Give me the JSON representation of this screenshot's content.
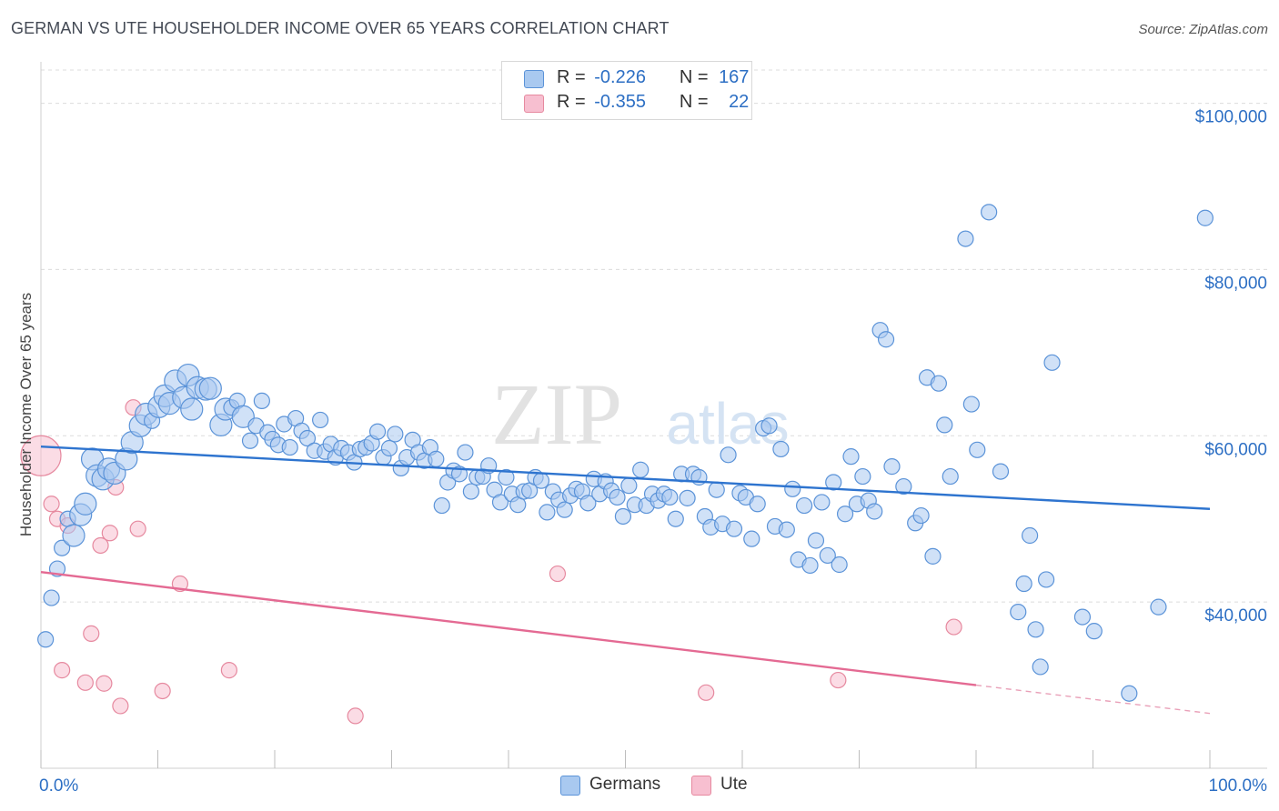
{
  "title": "GERMAN VS UTE HOUSEHOLDER INCOME OVER 65 YEARS CORRELATION CHART",
  "source": "Source: ZipAtlas.com",
  "watermark": {
    "zip": "ZIP",
    "atlas": "atlas"
  },
  "legend": {
    "r_label": "R =",
    "n_label": "N =",
    "items": [
      {
        "name": "Germans",
        "r": "-0.226",
        "n": "167",
        "color": "#a9c9f0",
        "edge": "#5b93d8"
      },
      {
        "name": "Ute",
        "r": "-0.355",
        "n": "22",
        "color": "#f7bfd0",
        "edge": "#e6899f"
      }
    ]
  },
  "chart_data": {
    "type": "scatter",
    "title": "GERMAN VS UTE HOUSEHOLDER INCOME OVER 65 YEARS CORRELATION CHART",
    "xlabel": "",
    "ylabel": "Householder Income Over 65 years",
    "xlim": [
      0,
      100
    ],
    "ylim": [
      20000,
      104000
    ],
    "x_tick_labels": [
      "0.0%",
      "100.0%"
    ],
    "y_ticks": [
      40000,
      60000,
      80000,
      100000
    ],
    "y_tick_labels": [
      "$40,000",
      "$60,000",
      "$80,000",
      "$100,000"
    ],
    "series": [
      {
        "name": "Germans",
        "color": "#5b93d8",
        "fill": "#a9c9f0",
        "trend": {
          "x": [
            0,
            100
          ],
          "y": [
            58700,
            51200
          ]
        },
        "points": [
          [
            0.4,
            35500,
            1
          ],
          [
            0.9,
            40500,
            1
          ],
          [
            1.4,
            44000,
            1
          ],
          [
            1.8,
            46500,
            1
          ],
          [
            2.3,
            50000,
            1
          ],
          [
            2.8,
            48000,
            2
          ],
          [
            3.4,
            50500,
            2
          ],
          [
            3.8,
            51800,
            2
          ],
          [
            4.4,
            57200,
            2
          ],
          [
            4.8,
            55200,
            2
          ],
          [
            5.3,
            54800,
            2
          ],
          [
            5.8,
            56000,
            2
          ],
          [
            6.3,
            55500,
            2
          ],
          [
            7.3,
            57200,
            2
          ],
          [
            7.8,
            59200,
            2
          ],
          [
            8.5,
            61200,
            2
          ],
          [
            9.0,
            62600,
            2
          ],
          [
            9.5,
            61800,
            1
          ],
          [
            10.1,
            63500,
            2
          ],
          [
            10.6,
            64800,
            2
          ],
          [
            11.0,
            63900,
            2
          ],
          [
            11.5,
            66600,
            2
          ],
          [
            12.2,
            64600,
            2
          ],
          [
            12.6,
            67300,
            2
          ],
          [
            12.9,
            63200,
            2
          ],
          [
            13.4,
            65800,
            2
          ],
          [
            14.1,
            65600,
            2
          ],
          [
            14.5,
            65700,
            2
          ],
          [
            15.4,
            61300,
            2
          ],
          [
            15.8,
            63200,
            2
          ],
          [
            16.3,
            63400,
            1
          ],
          [
            16.8,
            64200,
            1
          ],
          [
            17.3,
            62300,
            2
          ],
          [
            17.9,
            59400,
            1
          ],
          [
            18.4,
            61200,
            1
          ],
          [
            18.9,
            64200,
            1
          ],
          [
            19.4,
            60400,
            1
          ],
          [
            19.8,
            59600,
            1
          ],
          [
            20.3,
            58900,
            1
          ],
          [
            20.8,
            61400,
            1
          ],
          [
            21.3,
            58600,
            1
          ],
          [
            21.8,
            62100,
            1
          ],
          [
            22.3,
            60600,
            1
          ],
          [
            22.8,
            59700,
            1
          ],
          [
            23.4,
            58200,
            1
          ],
          [
            23.9,
            61900,
            1
          ],
          [
            24.3,
            58100,
            1
          ],
          [
            24.8,
            59000,
            1
          ],
          [
            25.2,
            57400,
            1
          ],
          [
            25.7,
            58500,
            1
          ],
          [
            26.3,
            58000,
            1
          ],
          [
            26.8,
            56800,
            1
          ],
          [
            27.3,
            58400,
            1
          ],
          [
            27.8,
            58600,
            1
          ],
          [
            28.3,
            59100,
            1
          ],
          [
            28.8,
            60500,
            1
          ],
          [
            29.3,
            57400,
            1
          ],
          [
            29.8,
            58500,
            1
          ],
          [
            30.3,
            60200,
            1
          ],
          [
            30.8,
            56100,
            1
          ],
          [
            31.3,
            57400,
            1
          ],
          [
            31.8,
            59500,
            1
          ],
          [
            32.3,
            58000,
            1
          ],
          [
            32.8,
            57000,
            1
          ],
          [
            33.3,
            58600,
            1
          ],
          [
            33.8,
            57200,
            1
          ],
          [
            34.3,
            51600,
            1
          ],
          [
            34.8,
            54400,
            1
          ],
          [
            35.3,
            55800,
            1
          ],
          [
            35.8,
            55400,
            1
          ],
          [
            36.3,
            58000,
            1
          ],
          [
            36.8,
            53300,
            1
          ],
          [
            37.3,
            55000,
            1
          ],
          [
            37.8,
            55100,
            1
          ],
          [
            38.3,
            56400,
            1
          ],
          [
            38.8,
            53500,
            1
          ],
          [
            39.3,
            52000,
            1
          ],
          [
            39.8,
            55000,
            1
          ],
          [
            40.3,
            53000,
            1
          ],
          [
            40.8,
            51700,
            1
          ],
          [
            41.3,
            53300,
            1
          ],
          [
            41.8,
            53400,
            1
          ],
          [
            42.3,
            55000,
            1
          ],
          [
            42.8,
            54600,
            1
          ],
          [
            43.3,
            50800,
            1
          ],
          [
            43.8,
            53300,
            1
          ],
          [
            44.3,
            52300,
            1
          ],
          [
            44.8,
            51100,
            1
          ],
          [
            45.3,
            52800,
            1
          ],
          [
            45.8,
            53600,
            1
          ],
          [
            46.3,
            53300,
            1
          ],
          [
            46.8,
            51900,
            1
          ],
          [
            47.3,
            54800,
            1
          ],
          [
            47.8,
            53000,
            1
          ],
          [
            48.3,
            54500,
            1
          ],
          [
            48.8,
            53400,
            1
          ],
          [
            49.3,
            52600,
            1
          ],
          [
            49.8,
            50300,
            1
          ],
          [
            50.3,
            54000,
            1
          ],
          [
            50.8,
            51700,
            1
          ],
          [
            51.3,
            55900,
            1
          ],
          [
            51.8,
            51600,
            1
          ],
          [
            52.3,
            53000,
            1
          ],
          [
            52.8,
            52200,
            1
          ],
          [
            53.3,
            53000,
            1
          ],
          [
            53.8,
            52600,
            1
          ],
          [
            54.3,
            50000,
            1
          ],
          [
            54.8,
            55400,
            1
          ],
          [
            55.3,
            52500,
            1
          ],
          [
            55.8,
            55400,
            1
          ],
          [
            56.3,
            55000,
            1
          ],
          [
            56.8,
            50300,
            1
          ],
          [
            57.3,
            49000,
            1
          ],
          [
            57.8,
            53500,
            1
          ],
          [
            58.3,
            49400,
            1
          ],
          [
            58.8,
            57700,
            1
          ],
          [
            59.3,
            48800,
            1
          ],
          [
            59.8,
            53100,
            1
          ],
          [
            60.3,
            52600,
            1
          ],
          [
            60.8,
            47600,
            1
          ],
          [
            61.3,
            51800,
            1
          ],
          [
            61.8,
            60900,
            1
          ],
          [
            62.3,
            61200,
            1
          ],
          [
            62.8,
            49100,
            1
          ],
          [
            63.3,
            58400,
            1
          ],
          [
            63.8,
            48700,
            1
          ],
          [
            64.3,
            53600,
            1
          ],
          [
            64.8,
            45100,
            1
          ],
          [
            65.3,
            51600,
            1
          ],
          [
            65.8,
            44400,
            1
          ],
          [
            66.3,
            47400,
            1
          ],
          [
            66.8,
            52000,
            1
          ],
          [
            67.3,
            45600,
            1
          ],
          [
            67.8,
            54400,
            1
          ],
          [
            68.3,
            44500,
            1
          ],
          [
            68.8,
            50600,
            1
          ],
          [
            69.3,
            57500,
            1
          ],
          [
            69.8,
            51800,
            1
          ],
          [
            70.3,
            55100,
            1
          ],
          [
            70.8,
            52200,
            1
          ],
          [
            71.3,
            50900,
            1
          ],
          [
            71.8,
            72700,
            1
          ],
          [
            72.3,
            71600,
            1
          ],
          [
            72.8,
            56300,
            1
          ],
          [
            73.8,
            53900,
            1
          ],
          [
            74.8,
            49500,
            1
          ],
          [
            75.3,
            50400,
            1
          ],
          [
            75.8,
            67000,
            1
          ],
          [
            76.3,
            45500,
            1
          ],
          [
            76.8,
            66300,
            1
          ],
          [
            77.3,
            61300,
            1
          ],
          [
            77.8,
            55100,
            1
          ],
          [
            79.1,
            83700,
            1
          ],
          [
            79.6,
            63800,
            1
          ],
          [
            80.1,
            58300,
            1
          ],
          [
            81.1,
            86900,
            1
          ],
          [
            82.1,
            55700,
            1
          ],
          [
            84.6,
            48000,
            1
          ],
          [
            83.6,
            38800,
            1
          ],
          [
            84.1,
            42200,
            1
          ],
          [
            85.1,
            36700,
            1
          ],
          [
            85.5,
            32200,
            1
          ],
          [
            86.0,
            42700,
            1
          ],
          [
            86.5,
            68800,
            1
          ],
          [
            89.1,
            38200,
            1
          ],
          [
            90.1,
            36500,
            1
          ],
          [
            93.1,
            29000,
            1
          ],
          [
            95.6,
            39400,
            1
          ],
          [
            99.6,
            86200,
            1
          ]
        ]
      },
      {
        "name": "Ute",
        "color": "#e6899f",
        "fill": "#f7bfd0",
        "trend": {
          "x": [
            0,
            80
          ],
          "y": [
            43600,
            30000
          ]
        },
        "trend_dashed": {
          "x": [
            80,
            100
          ],
          "y": [
            30000,
            26600
          ]
        },
        "points": [
          [
            0.0,
            57600,
            3
          ],
          [
            0.9,
            51800,
            1
          ],
          [
            1.4,
            50000,
            1
          ],
          [
            1.8,
            31800,
            1
          ],
          [
            2.3,
            49200,
            1
          ],
          [
            3.8,
            30300,
            1
          ],
          [
            4.3,
            36200,
            1
          ],
          [
            5.1,
            46800,
            1
          ],
          [
            5.4,
            30200,
            1
          ],
          [
            5.9,
            48300,
            1
          ],
          [
            6.4,
            53800,
            1
          ],
          [
            6.8,
            27500,
            1
          ],
          [
            7.9,
            63400,
            1
          ],
          [
            8.3,
            48800,
            1
          ],
          [
            10.4,
            29300,
            1
          ],
          [
            11.9,
            42200,
            1
          ],
          [
            16.1,
            31800,
            1
          ],
          [
            26.9,
            26300,
            1
          ],
          [
            44.2,
            43400,
            1
          ],
          [
            56.9,
            29100,
            1
          ],
          [
            68.2,
            30600,
            1
          ],
          [
            78.1,
            37000,
            1
          ]
        ]
      }
    ]
  }
}
